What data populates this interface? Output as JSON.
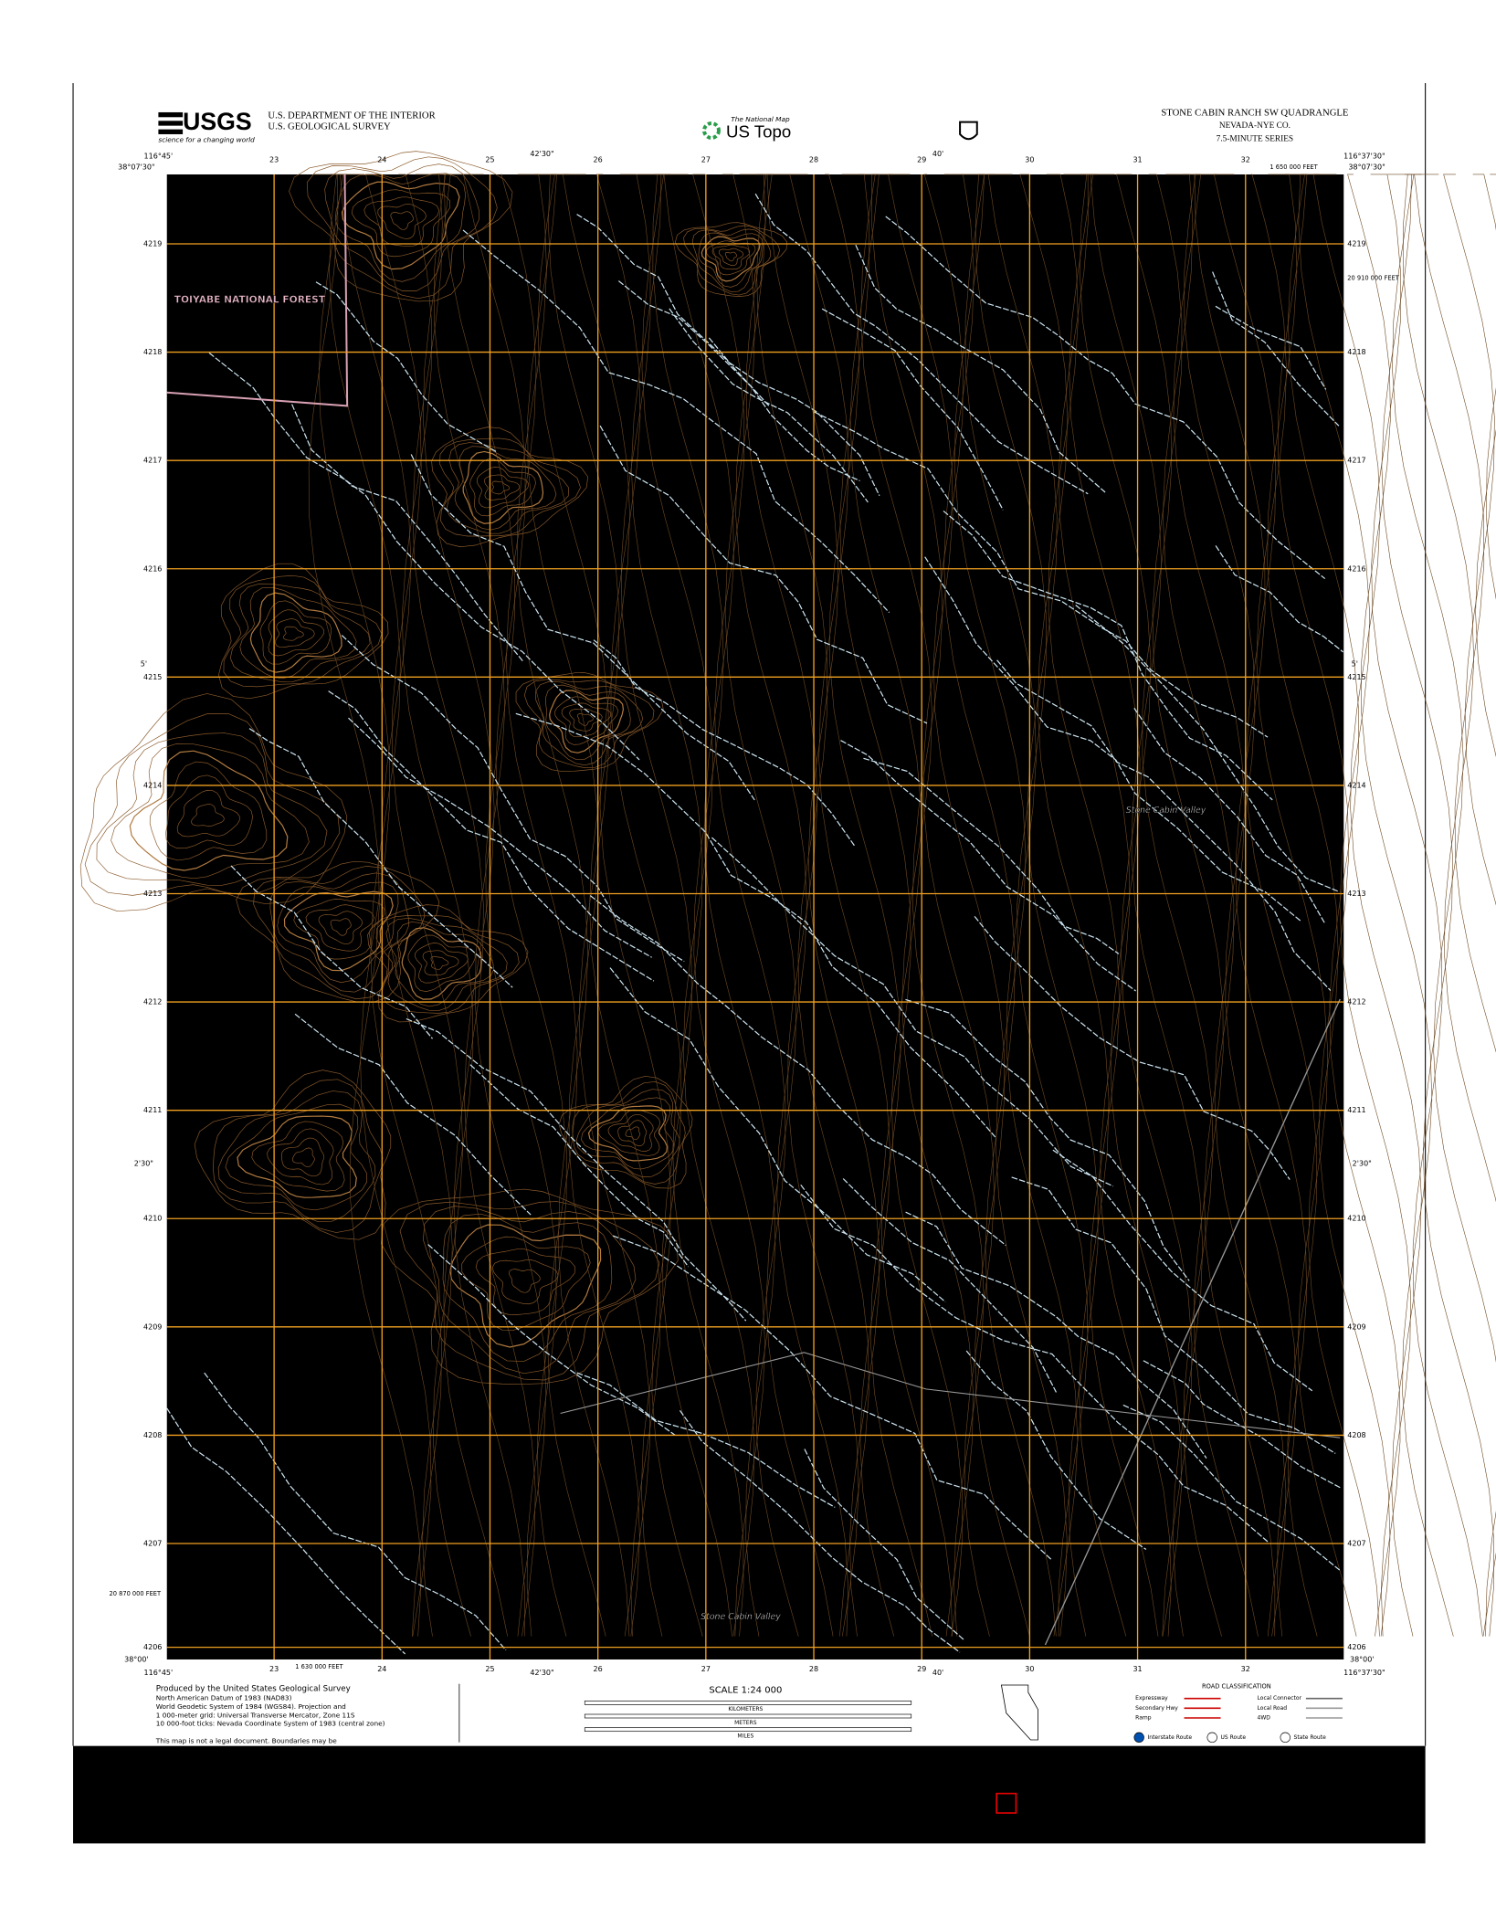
{
  "header": {
    "logo": "USGS",
    "logo_tagline": "science for a changing world",
    "agency": [
      "U.S. DEPARTMENT OF THE INTERIOR",
      "U.S. GEOLOGICAL SURVEY"
    ],
    "national_map": "The National Map",
    "us_topo": "US Topo",
    "quadrangle": "STONE CABIN RANCH SW QUADRANGLE",
    "county": "NEVADA-NYE CO.",
    "series": "7.5-MINUTE SERIES"
  },
  "map": {
    "corners": {
      "west": "116°45'",
      "east": "116°37'30\"",
      "north": "38°07'30\"",
      "south": "38°00'"
    },
    "minutes_lon": [
      "42'30\"",
      "40'"
    ],
    "minutes_lat": [
      "5'",
      "2'30\""
    ],
    "feet": {
      "top": "1 650 000 FEET",
      "bottom": "1 630 000 FEET",
      "right": "20 910 000 FEET",
      "left": "20 870 000 FEET"
    },
    "eastings": [
      "23",
      "24",
      "25",
      "26",
      "27",
      "28",
      "29",
      "30",
      "31",
      "32"
    ],
    "northings": [
      "4219",
      "4218",
      "4217",
      "4216",
      "4215",
      "4214",
      "4213",
      "4212",
      "4211",
      "4210",
      "4209",
      "4208",
      "4207",
      "4206"
    ],
    "place_names": [
      "TOIYABE NATIONAL FOREST",
      "Stone Cabin Valley",
      "Stone Cabin Valley"
    ]
  },
  "footer": {
    "credits": [
      "Produced by the United States Geological Survey",
      "North American Datum of 1983 (NAD83)",
      "World Geodetic System of 1984 (WGS84). Projection and",
      "1 000-meter grid: Universal Transverse Mercator, Zone 11S",
      "10 000-foot ticks: Nevada Coordinate System of 1983 (central zone)",
      "This map is not a legal document. Boundaries may be"
    ],
    "scale": "SCALE 1:24 000",
    "scale_units": [
      "KILOMETERS",
      "METERS",
      "MILES"
    ],
    "road_title": "ROAD CLASSIFICATION",
    "roads": [
      "Expressway",
      "Local Connector",
      "Secondary Hwy",
      "Local Road",
      "Ramp",
      "4WD",
      "Interstate Route",
      "US Route",
      "State Route"
    ]
  }
}
